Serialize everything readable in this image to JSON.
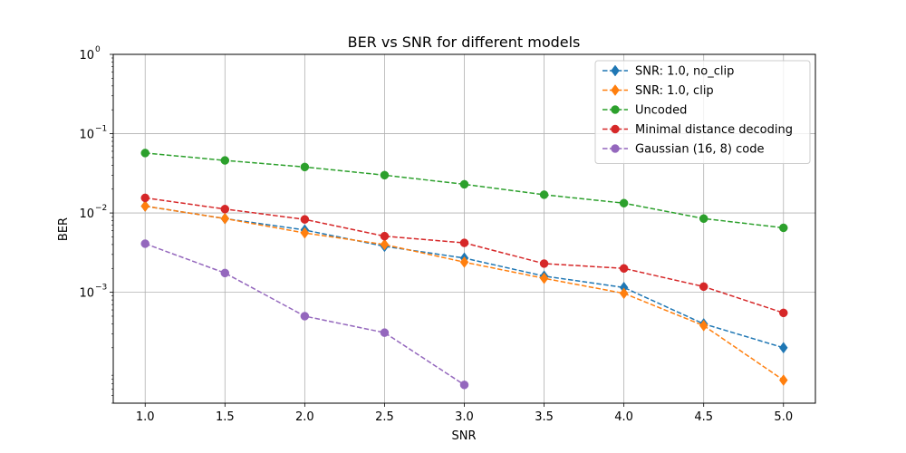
{
  "chart_data": {
    "type": "line",
    "title": "BER vs SNR for different models",
    "xlabel": "SNR",
    "ylabel": "BER",
    "yscale": "log",
    "xlim": [
      0.8,
      5.2
    ],
    "ylim": [
      4e-05,
      1
    ],
    "grid": true,
    "legend_position": "top-right",
    "x_ticks": [
      1.0,
      1.5,
      2.0,
      2.5,
      3.0,
      3.5,
      4.0,
      4.5,
      5.0
    ],
    "x_tick_labels": [
      "1.0",
      "1.5",
      "2.0",
      "2.5",
      "3.0",
      "3.5",
      "4.0",
      "4.5",
      "5.0"
    ],
    "y_ticks": [
      {
        "value": 1,
        "base": "10",
        "exp": "0"
      },
      {
        "value": 0.1,
        "base": "10",
        "exp": "−1"
      },
      {
        "value": 0.01,
        "base": "10",
        "exp": "−2"
      },
      {
        "value": 0.001,
        "base": "10",
        "exp": "−3"
      }
    ],
    "series": [
      {
        "name": "SNR: 1.0, no_clip",
        "color": "#1f77b4",
        "marker": "diamond",
        "x": [
          1.0,
          1.5,
          2.0,
          2.5,
          3.0,
          3.5,
          4.0,
          4.5,
          5.0
        ],
        "y": [
          0.0122,
          0.0085,
          0.0061,
          0.0038,
          0.0027,
          0.0016,
          0.00115,
          0.0004,
          0.0002
        ]
      },
      {
        "name": "SNR: 1.0, clip",
        "color": "#ff7f0e",
        "marker": "diamond",
        "x": [
          1.0,
          1.5,
          2.0,
          2.5,
          3.0,
          3.5,
          4.0,
          4.5,
          5.0
        ],
        "y": [
          0.0122,
          0.0085,
          0.0056,
          0.004,
          0.0024,
          0.0015,
          0.00097,
          0.00038,
          7.8e-05
        ]
      },
      {
        "name": "Uncoded",
        "color": "#2ca02c",
        "marker": "circle",
        "x": [
          1.0,
          1.5,
          2.0,
          2.5,
          3.0,
          3.5,
          4.0,
          4.5,
          5.0
        ],
        "y": [
          0.057,
          0.046,
          0.038,
          0.03,
          0.023,
          0.017,
          0.0133,
          0.0085,
          0.0065
        ]
      },
      {
        "name": "Minimal distance decoding",
        "color": "#d62728",
        "marker": "circle",
        "x": [
          1.0,
          1.5,
          2.0,
          2.5,
          3.0,
          3.5,
          4.0,
          4.5,
          5.0
        ],
        "y": [
          0.0155,
          0.0112,
          0.0083,
          0.0051,
          0.0042,
          0.0023,
          0.002,
          0.00118,
          0.00055
        ]
      },
      {
        "name": "Gaussian (16, 8) code",
        "color": "#9467bd",
        "marker": "circle",
        "x": [
          1.0,
          1.5,
          2.0,
          2.5,
          3.0
        ],
        "y": [
          0.0041,
          0.00175,
          0.0005,
          0.00031,
          6.8e-05
        ]
      }
    ]
  }
}
